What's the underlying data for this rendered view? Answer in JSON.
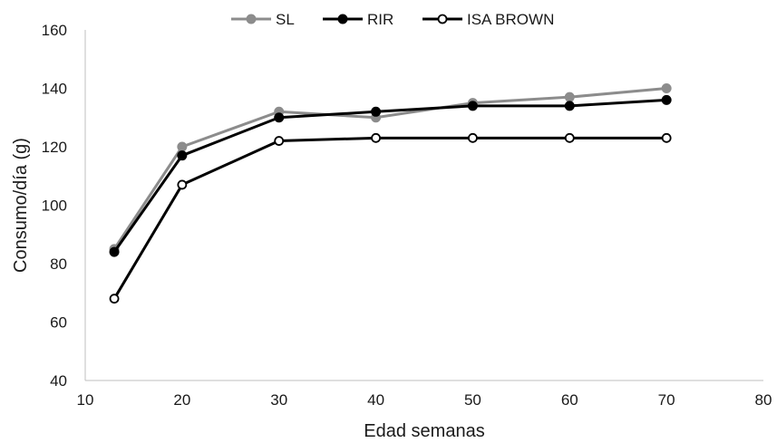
{
  "chart_data": {
    "type": "line",
    "title": "",
    "xlabel": "Edad semanas",
    "ylabel": "Consumo/día (g)",
    "xlim": [
      10,
      80
    ],
    "ylim": [
      40,
      160
    ],
    "xticks": [
      10,
      20,
      30,
      40,
      50,
      60,
      70,
      80
    ],
    "yticks": [
      40,
      60,
      80,
      100,
      120,
      140,
      160
    ],
    "grid": false,
    "legend_position": "top",
    "x": [
      13,
      20,
      30,
      40,
      50,
      60,
      70
    ],
    "series": [
      {
        "name": "SL",
        "values": [
          85,
          120,
          132,
          130,
          135,
          137,
          140
        ],
        "color": "#8c8c8c",
        "marker": "filled"
      },
      {
        "name": "RIR",
        "values": [
          84,
          117,
          130,
          132,
          134,
          134,
          136
        ],
        "color": "#000000",
        "marker": "filled"
      },
      {
        "name": "ISA BROWN",
        "values": [
          68,
          107,
          122,
          123,
          123,
          123,
          123
        ],
        "color": "#000000",
        "marker": "hollow"
      }
    ]
  }
}
